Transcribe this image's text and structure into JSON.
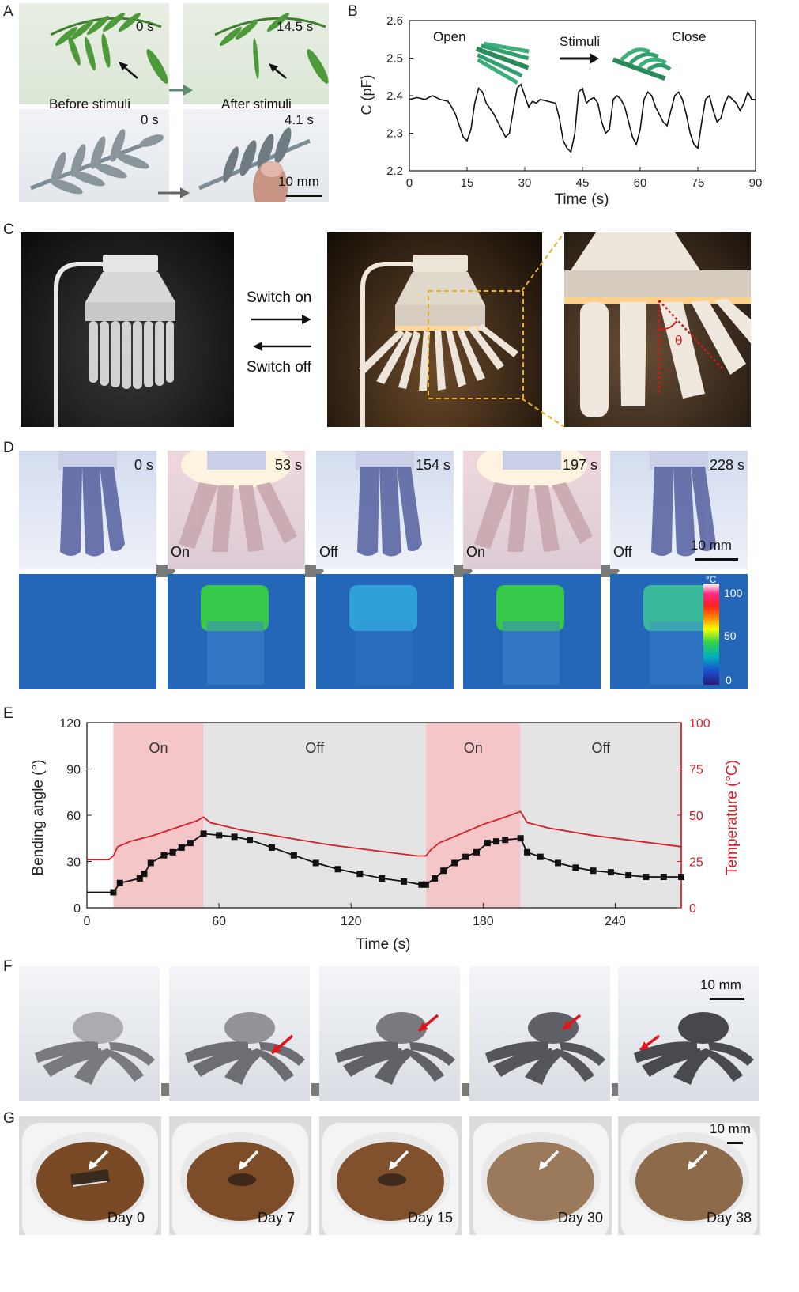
{
  "panels": {
    "A": "A",
    "B": "B",
    "C": "C",
    "D": "D",
    "E": "E",
    "F": "F",
    "G": "G"
  },
  "panelA": {
    "t_top_left": "0 s",
    "t_top_right": "14.5 s",
    "t_bottom_left": "0 s",
    "t_bottom_right": "4.1 s",
    "caption_left": "Before stimuli",
    "caption_right": "After stimuli",
    "scale": "10 mm"
  },
  "panelC": {
    "switch_on": "Switch on",
    "switch_off": "Switch off",
    "angle_symbol": "θ"
  },
  "panelD": {
    "times": [
      "0 s",
      "53 s",
      "154 s",
      "197 s",
      "228 s"
    ],
    "states": [
      "",
      "On",
      "Off",
      "On",
      "Off"
    ],
    "scale": "10 mm",
    "colorbar_unit": "°C",
    "colorbar_ticks": [
      "100",
      "50",
      "0"
    ]
  },
  "panelF": {
    "scale": "10 mm"
  },
  "panelG": {
    "scale": "10 mm",
    "days": [
      "Day 0",
      "Day 7",
      "Day 15",
      "Day 30",
      "Day 38"
    ]
  },
  "chart_data": [
    {
      "type": "line",
      "panel": "B",
      "xlabel": "Time (s)",
      "ylabel": "C (pF)",
      "xlim": [
        0,
        90
      ],
      "ylim": [
        2.2,
        2.6
      ],
      "xticks": [
        "0",
        "15",
        "30",
        "45",
        "60",
        "75",
        "90"
      ],
      "yticks": [
        "2.2",
        "2.3",
        "2.4",
        "2.5",
        "2.6"
      ],
      "annotations": {
        "open": "Open",
        "stimuli": "Stimuli",
        "close": "Close"
      },
      "series": [
        {
          "color": "#111111",
          "x": [
            0,
            2,
            4,
            6,
            8,
            10,
            11,
            12,
            13,
            14,
            15,
            16,
            17,
            18,
            19,
            20,
            22,
            24,
            25,
            26,
            27,
            28,
            29,
            30,
            31,
            32,
            33,
            34,
            36,
            38,
            39,
            40,
            41,
            42,
            43,
            44,
            45,
            46,
            47,
            48,
            49,
            50,
            51,
            52,
            53,
            54,
            55,
            56,
            57,
            58,
            59,
            60,
            61,
            62,
            63,
            64,
            65,
            66,
            67,
            68,
            69,
            70,
            71,
            72,
            73,
            74,
            75,
            76,
            77,
            78,
            79,
            80,
            81,
            82,
            83,
            84,
            85,
            86,
            87,
            88,
            89,
            90
          ],
          "y": [
            2.39,
            2.395,
            2.39,
            2.4,
            2.39,
            2.385,
            2.37,
            2.35,
            2.32,
            2.29,
            2.28,
            2.31,
            2.38,
            2.42,
            2.41,
            2.38,
            2.35,
            2.31,
            2.29,
            2.3,
            2.36,
            2.42,
            2.43,
            2.4,
            2.37,
            2.385,
            2.38,
            2.39,
            2.385,
            2.38,
            2.34,
            2.28,
            2.26,
            2.25,
            2.3,
            2.41,
            2.42,
            2.38,
            2.39,
            2.395,
            2.38,
            2.33,
            2.3,
            2.31,
            2.39,
            2.4,
            2.39,
            2.37,
            2.33,
            2.29,
            2.27,
            2.31,
            2.39,
            2.41,
            2.4,
            2.37,
            2.35,
            2.33,
            2.32,
            2.36,
            2.4,
            2.41,
            2.39,
            2.35,
            2.3,
            2.27,
            2.26,
            2.33,
            2.39,
            2.4,
            2.36,
            2.33,
            2.34,
            2.38,
            2.4,
            2.39,
            2.38,
            2.36,
            2.38,
            2.41,
            2.39,
            2.39
          ]
        }
      ]
    },
    {
      "type": "line",
      "panel": "E",
      "xlabel": "Time (s)",
      "ylabel": "Bending angle (°)",
      "ylabel_right": "Temperature (°C)",
      "xlim": [
        0,
        270
      ],
      "ylim": [
        0,
        120
      ],
      "ylim_right": [
        0,
        100
      ],
      "xticks": [
        "0",
        "60",
        "120",
        "180",
        "240"
      ],
      "yticks": [
        "0",
        "30",
        "60",
        "90",
        "120"
      ],
      "yticks_right": [
        "0",
        "25",
        "50",
        "75",
        "100"
      ],
      "regions": [
        {
          "label": "On",
          "start": 12,
          "end": 53,
          "color": "#f4c6c8"
        },
        {
          "label": "Off",
          "start": 53,
          "end": 154,
          "color": "#e4e4e4"
        },
        {
          "label": "On",
          "start": 154,
          "end": 197,
          "color": "#f4c6c8"
        },
        {
          "label": "Off",
          "start": 197,
          "end": 270,
          "color": "#e4e4e4"
        }
      ],
      "series": [
        {
          "name": "Bending angle",
          "axis": "left",
          "color": "#111111",
          "marker": "square",
          "x": [
            0,
            12,
            15,
            24,
            26,
            29,
            35,
            39,
            43,
            47,
            53,
            60,
            67,
            74,
            84,
            94,
            104,
            114,
            124,
            134,
            144,
            152,
            154,
            158,
            162,
            167,
            172,
            177,
            182,
            186,
            190,
            197,
            200,
            206,
            214,
            222,
            230,
            238,
            246,
            254,
            262,
            270
          ],
          "y": [
            10,
            10,
            16,
            19,
            22,
            29,
            34,
            36,
            39,
            42,
            48,
            47,
            46,
            44,
            39,
            34,
            29,
            25,
            22,
            19,
            17,
            15,
            15,
            19,
            24,
            29,
            33,
            36,
            42,
            43,
            44,
            45,
            36,
            33,
            29,
            26,
            24,
            23,
            21,
            20,
            20,
            20
          ]
        },
        {
          "name": "Temperature",
          "axis": "right",
          "color": "#d42027",
          "x": [
            0,
            10,
            12,
            14,
            20,
            30,
            40,
            50,
            53,
            56,
            70,
            90,
            110,
            130,
            150,
            154,
            156,
            160,
            170,
            180,
            190,
            197,
            200,
            210,
            230,
            250,
            270
          ],
          "y": [
            26,
            26,
            28,
            33,
            36,
            39,
            43,
            47,
            49,
            46,
            42,
            38,
            34,
            31,
            28,
            28,
            31,
            35,
            40,
            45,
            49,
            52,
            46,
            43,
            39,
            36,
            33
          ]
        }
      ]
    }
  ]
}
